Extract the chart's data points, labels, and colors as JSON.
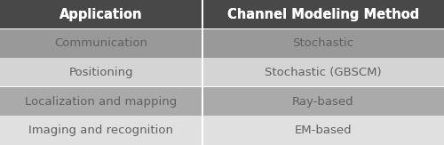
{
  "header": [
    "Application",
    "Channel Modeling Method"
  ],
  "rows": [
    [
      "Communication",
      "Stochastic"
    ],
    [
      "Positioning",
      "Stochastic (GBSCM)"
    ],
    [
      "Localization and mapping",
      "Ray-based"
    ],
    [
      "Imaging and recognition",
      "EM-based"
    ]
  ],
  "header_bg": "#484848",
  "header_text_color": "#ffffff",
  "row_colors": [
    "#999999",
    "#d4d4d4",
    "#aaaaaa",
    "#e0e0e0"
  ],
  "row_text_color": "#606060",
  "divider_color": "#ffffff",
  "col_split": 0.455,
  "header_fontsize": 10.5,
  "row_fontsize": 9.5,
  "fig_width": 5.0,
  "fig_height": 1.63,
  "dpi": 100
}
